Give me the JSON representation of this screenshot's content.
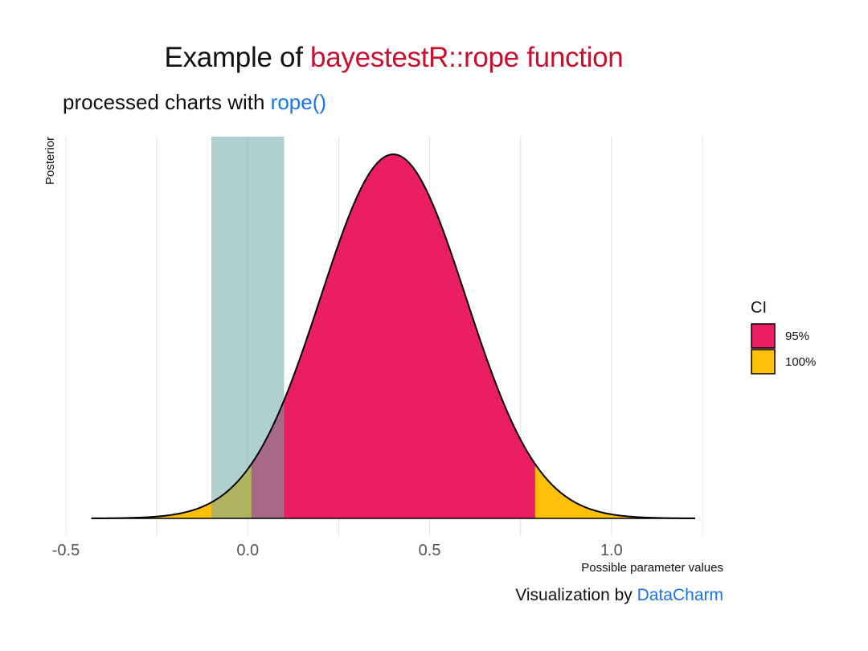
{
  "title": {
    "prefix": "Example of ",
    "highlight": "bayestestR::rope function",
    "highlight_color": "#c8102e"
  },
  "subtitle": {
    "prefix": "processed charts with ",
    "highlight": "rope()",
    "highlight_color": "#1a73e8"
  },
  "caption": {
    "prefix": "Visualization by ",
    "highlight": "DataCharm",
    "highlight_color": "#1a73e8"
  },
  "chart_data": {
    "type": "area",
    "xlabel": "Possible parameter values",
    "ylabel": "Posterior",
    "xlim": [
      -0.5,
      1.25
    ],
    "x_ticks": [
      -0.5,
      0.0,
      0.5,
      1.0
    ],
    "x_tick_labels": [
      "-0.5",
      "0.0",
      "0.5",
      "1.0"
    ],
    "y_ticks_shown": false,
    "grid": "vertical",
    "distribution": {
      "shape": "normal",
      "mean": 0.4,
      "sd": 0.2,
      "x_range": [
        -0.43,
        1.23
      ]
    },
    "ci": {
      "legend_title": "CI",
      "legend_position": "right",
      "levels": [
        {
          "name": "95%",
          "low": 0.01,
          "high": 0.79,
          "color": "#e91e63"
        },
        {
          "name": "100%",
          "low": -0.43,
          "high": 1.23,
          "color": "#ffc107"
        }
      ]
    },
    "rope": {
      "low": -0.1,
      "high": 0.1,
      "color": "#6fa8a8",
      "opacity": 0.55
    }
  }
}
